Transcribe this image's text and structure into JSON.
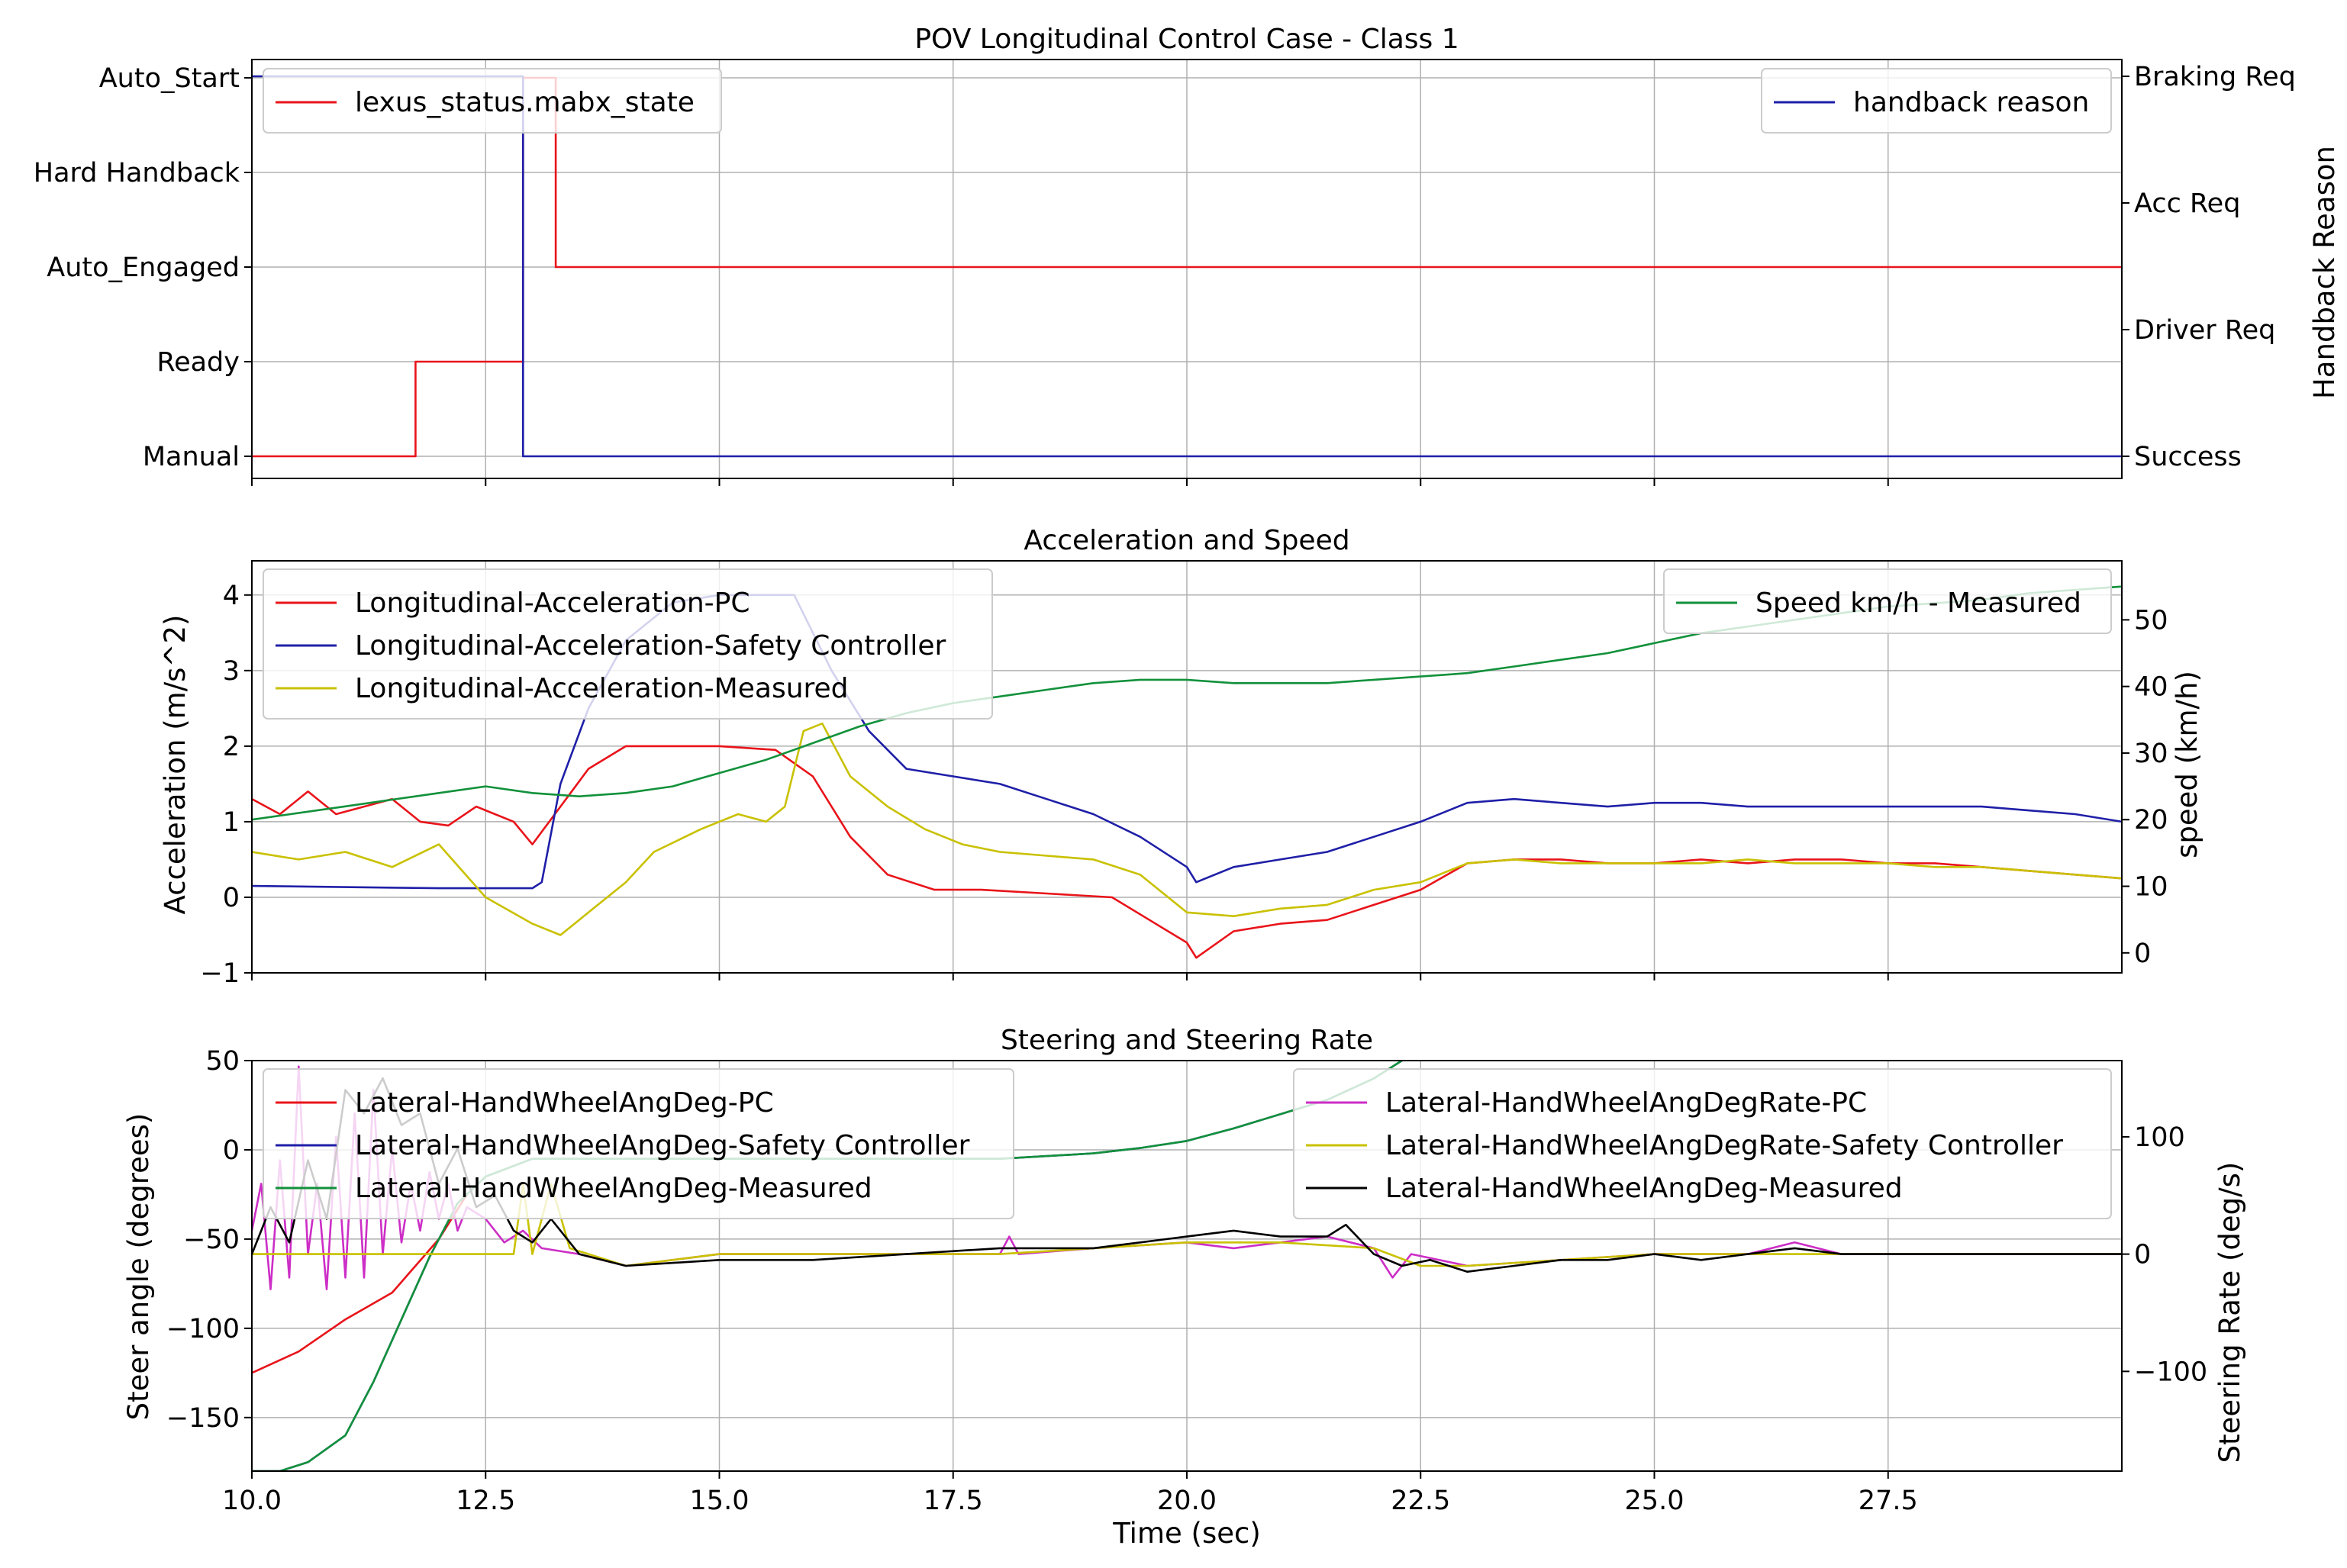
{
  "figure": {
    "xlabel": "Time (sec)",
    "xlim": [
      10.0,
      30.0
    ],
    "xticks": [
      "10.0",
      "12.5",
      "15.0",
      "17.5",
      "20.0",
      "22.5",
      "25.0",
      "27.5"
    ],
    "grid": true
  },
  "chart_data": [
    {
      "type": "line",
      "title": "POV Longitudinal Control Case - Class 1",
      "xlabel": "",
      "ylabel_left": "",
      "ylabel_right": "Handback Reason",
      "y_left_categories": [
        "Manual",
        "Ready",
        "Auto_Engaged",
        "Hard Handback",
        "Auto_Start"
      ],
      "y_right_categories": [
        "Success",
        "Driver Req",
        "Acc Req",
        "Braking Req"
      ],
      "legend_left_position": "top-left",
      "legend_right_position": "top-right",
      "series": [
        {
          "name": "lexus_status.mabx_state",
          "axis": "left",
          "color": "#e8141a",
          "step": true,
          "x": [
            10.0,
            11.75,
            11.75,
            12.9,
            12.9,
            13.25,
            13.25,
            30.0
          ],
          "y": [
            0,
            0,
            1,
            1,
            4,
            4,
            2,
            2
          ]
        },
        {
          "name": "handback reason",
          "axis": "right",
          "color": "#1f1fa8",
          "step": true,
          "x": [
            10.0,
            12.9,
            12.9,
            30.0
          ],
          "y": [
            3,
            3,
            0,
            0
          ]
        }
      ]
    },
    {
      "type": "line",
      "title": "Acceleration and Speed",
      "ylabel_left": "Acceleration (m/s^2)",
      "ylabel_right": "speed (km/h)",
      "ylim_left": [
        -1,
        4.2
      ],
      "ylim_right": [
        -3,
        56
      ],
      "yticks_left": [
        "−1",
        "0",
        "1",
        "2",
        "3",
        "4"
      ],
      "yticks_right": [
        "0",
        "10",
        "20",
        "30",
        "40",
        "50"
      ],
      "legend_left_position": "top-left",
      "legend_right_position": "top-right",
      "series": [
        {
          "name": "Longitudinal-Acceleration-PC",
          "axis": "left",
          "color": "#e8141a",
          "x": [
            10.0,
            10.3,
            10.6,
            10.9,
            11.2,
            11.5,
            11.8,
            12.1,
            12.4,
            12.8,
            13.0,
            13.3,
            13.6,
            14.0,
            14.5,
            15.0,
            15.6,
            16.0,
            16.4,
            16.8,
            17.3,
            17.8,
            18.5,
            19.2,
            19.6,
            20.0,
            20.1,
            20.5,
            21.0,
            21.5,
            22.0,
            22.5,
            23.0,
            23.5,
            24.0,
            24.5,
            25.0,
            25.5,
            26.0,
            26.5,
            27.0,
            27.5,
            28.0,
            28.5,
            29.0,
            29.5,
            30.0
          ],
          "y": [
            1.3,
            1.1,
            1.4,
            1.1,
            1.2,
            1.3,
            1.0,
            0.95,
            1.2,
            1.0,
            0.7,
            1.2,
            1.7,
            2.0,
            2.0,
            2.0,
            1.95,
            1.6,
            0.8,
            0.3,
            0.1,
            0.1,
            0.05,
            0.0,
            -0.3,
            -0.6,
            -0.8,
            -0.45,
            -0.35,
            -0.3,
            -0.1,
            0.1,
            0.45,
            0.5,
            0.5,
            0.45,
            0.45,
            0.5,
            0.45,
            0.5,
            0.5,
            0.45,
            0.45,
            0.4,
            0.35,
            0.3,
            0.25
          ]
        },
        {
          "name": "Longitudinal-Acceleration-Safety Controller",
          "axis": "left",
          "color": "#1f1fa8",
          "x": [
            10.0,
            12.0,
            13.0,
            13.1,
            13.3,
            13.6,
            14.0,
            14.5,
            15.0,
            15.5,
            15.8,
            16.2,
            16.6,
            17.0,
            17.5,
            18.0,
            18.5,
            19.0,
            19.5,
            20.0,
            20.1,
            20.5,
            21.0,
            21.5,
            22.0,
            22.5,
            23.0,
            23.5,
            24.0,
            24.5,
            25.0,
            25.5,
            26.0,
            26.5,
            27.0,
            27.5,
            28.0,
            28.5,
            29.0,
            29.5,
            30.0
          ],
          "y": [
            0.15,
            0.12,
            0.12,
            0.2,
            1.5,
            2.5,
            3.4,
            3.9,
            4.0,
            4.0,
            4.0,
            3.0,
            2.2,
            1.7,
            1.6,
            1.5,
            1.3,
            1.1,
            0.8,
            0.4,
            0.2,
            0.4,
            0.5,
            0.6,
            0.8,
            1.0,
            1.25,
            1.3,
            1.25,
            1.2,
            1.25,
            1.25,
            1.2,
            1.2,
            1.2,
            1.2,
            1.2,
            1.2,
            1.15,
            1.1,
            1.0
          ]
        },
        {
          "name": "Longitudinal-Acceleration-Measured",
          "axis": "left",
          "color": "#c9c100",
          "x": [
            10.0,
            10.5,
            11.0,
            11.5,
            12.0,
            12.5,
            13.0,
            13.3,
            13.6,
            14.0,
            14.3,
            14.8,
            15.2,
            15.5,
            15.7,
            15.9,
            16.1,
            16.4,
            16.8,
            17.2,
            17.6,
            18.0,
            18.5,
            19.0,
            19.5,
            20.0,
            20.5,
            21.0,
            21.5,
            22.0,
            22.5,
            23.0,
            23.5,
            24.0,
            24.5,
            25.0,
            25.5,
            26.0,
            26.5,
            27.0,
            27.5,
            28.0,
            28.5,
            29.0,
            29.5,
            30.0
          ],
          "y": [
            0.6,
            0.5,
            0.6,
            0.4,
            0.7,
            0.0,
            -0.35,
            -0.5,
            -0.2,
            0.2,
            0.6,
            0.9,
            1.1,
            1.0,
            1.2,
            2.2,
            2.3,
            1.6,
            1.2,
            0.9,
            0.7,
            0.6,
            0.55,
            0.5,
            0.3,
            -0.2,
            -0.25,
            -0.15,
            -0.1,
            0.1,
            0.2,
            0.45,
            0.5,
            0.45,
            0.45,
            0.45,
            0.45,
            0.5,
            0.45,
            0.45,
            0.45,
            0.4,
            0.4,
            0.35,
            0.3,
            0.25
          ]
        },
        {
          "name": "Speed km/h - Measured",
          "axis": "right",
          "color": "#12913b",
          "x": [
            10.0,
            11.0,
            12.0,
            12.5,
            13.0,
            13.5,
            14.0,
            14.5,
            15.0,
            15.5,
            16.0,
            16.5,
            17.0,
            17.5,
            18.0,
            18.5,
            19.0,
            19.5,
            20.0,
            20.5,
            21.0,
            21.5,
            22.0,
            22.5,
            23.0,
            23.5,
            24.0,
            24.5,
            25.0,
            25.5,
            26.0,
            26.5,
            27.0,
            27.5,
            28.0,
            28.5,
            29.0,
            29.5,
            30.0
          ],
          "y": [
            20,
            22,
            24,
            25,
            24,
            23.5,
            24,
            25,
            27,
            29,
            31.5,
            34,
            36,
            37.5,
            38.5,
            39.5,
            40.5,
            41,
            41,
            40.5,
            40.5,
            40.5,
            41,
            41.5,
            42,
            43,
            44,
            45,
            46.5,
            48,
            49,
            50,
            51,
            52,
            52.5,
            53,
            54,
            54.5,
            55
          ]
        }
      ]
    },
    {
      "type": "line",
      "title": "Steering and Steering Rate",
      "ylabel_left": "Steer angle (degrees)",
      "ylabel_right": "Steering Rate (deg/s)",
      "ylim_left": [
        -180,
        50
      ],
      "ylim_right": [
        -185,
        165
      ],
      "yticks_left": [
        "50",
        "0",
        "−50",
        "−100",
        "−150"
      ],
      "yticks_right": [
        "100",
        "0",
        "−100"
      ],
      "legend_left_position": "top-left",
      "legend_right_position": "top-right",
      "series": [
        {
          "name": "Lateral-HandWheelAngDeg-PC",
          "axis": "left",
          "color": "#e8141a",
          "x": [
            10.0,
            10.5,
            11.0,
            11.5,
            12.0,
            12.3
          ],
          "y": [
            -125,
            -113,
            -95,
            -80,
            -50,
            -25
          ]
        },
        {
          "name": "Lateral-HandWheelAngDeg-Safety Controller",
          "axis": "left",
          "color": "#1f1fa8",
          "x": [
            10.0,
            10.3,
            10.6,
            11.0,
            11.3,
            11.6,
            11.9,
            12.2,
            12.5,
            13.0,
            14.0,
            15.0,
            16.0,
            17.0,
            18.0,
            19.0,
            19.5,
            20.0,
            20.5,
            21.0,
            21.5,
            22.0,
            22.3
          ],
          "y": [
            -180,
            -180,
            -175,
            -160,
            -130,
            -95,
            -60,
            -30,
            -15,
            -5,
            -5,
            -5,
            -5,
            -5,
            -5,
            -2,
            1,
            5,
            12,
            20,
            28,
            40,
            50
          ]
        },
        {
          "name": "Lateral-HandWheelAngDeg-Measured",
          "axis": "left",
          "color": "#12913b",
          "x": [
            10.0,
            10.3,
            10.6,
            11.0,
            11.3,
            11.6,
            11.9,
            12.2,
            12.5,
            13.0,
            14.0,
            15.0,
            16.0,
            17.0,
            18.0,
            19.0,
            19.5,
            20.0,
            20.5,
            21.0,
            21.5,
            22.0,
            22.3
          ],
          "y": [
            -180,
            -180,
            -175,
            -160,
            -130,
            -95,
            -60,
            -30,
            -15,
            -5,
            -5,
            -5,
            -5,
            -5,
            -5,
            -2,
            1,
            5,
            12,
            20,
            28,
            40,
            50
          ]
        },
        {
          "name": "Lateral-HandWheelAngDegRate-PC",
          "axis": "right",
          "color": "#cc2ec6",
          "x": [
            10.0,
            10.1,
            10.2,
            10.3,
            10.4,
            10.5,
            10.6,
            10.7,
            10.8,
            10.9,
            11.0,
            11.1,
            11.2,
            11.3,
            11.4,
            11.5,
            11.6,
            11.7,
            11.8,
            11.9,
            12.0,
            12.1,
            12.2,
            12.3,
            12.5,
            12.7,
            12.9,
            13.1,
            13.5,
            14.0,
            15.0,
            16.0,
            17.0,
            18.0,
            18.1,
            18.2,
            19.0,
            20.0,
            20.5,
            21.0,
            21.5,
            22.0,
            22.2,
            22.4,
            23.0,
            24.0,
            25.0,
            26.0,
            26.5,
            27.0,
            28.0,
            29.0,
            30.0
          ],
          "y": [
            20,
            60,
            -30,
            80,
            -20,
            160,
            0,
            60,
            -30,
            100,
            -20,
            120,
            -20,
            140,
            0,
            90,
            10,
            60,
            20,
            70,
            30,
            60,
            20,
            40,
            30,
            10,
            20,
            5,
            0,
            -10,
            0,
            0,
            0,
            0,
            15,
            0,
            5,
            10,
            5,
            10,
            15,
            5,
            -20,
            0,
            -10,
            -5,
            0,
            0,
            10,
            0,
            0,
            0,
            0
          ]
        },
        {
          "name": "Lateral-HandWheelAngDegRate-Safety Controller",
          "axis": "right",
          "color": "#c9c100",
          "x": [
            10.0,
            11.0,
            12.0,
            12.8,
            12.9,
            13.0,
            13.2,
            13.4,
            14.0,
            15.0,
            16.0,
            17.0,
            18.0,
            19.0,
            20.0,
            21.0,
            22.0,
            22.5,
            23.0,
            24.0,
            25.0,
            26.0,
            27.0,
            28.0,
            29.0,
            30.0
          ],
          "y": [
            0,
            0,
            0,
            0,
            60,
            0,
            60,
            5,
            -10,
            0,
            0,
            0,
            0,
            5,
            10,
            10,
            5,
            -10,
            -10,
            -5,
            0,
            0,
            0,
            0,
            0,
            0
          ]
        },
        {
          "name": "Lateral-HandWheelAngDeg-Measured",
          "axis": "right",
          "color": "#000000",
          "x": [
            10.0,
            10.2,
            10.4,
            10.6,
            10.8,
            11.0,
            11.2,
            11.4,
            11.6,
            11.8,
            12.0,
            12.2,
            12.4,
            12.6,
            12.8,
            13.0,
            13.2,
            13.5,
            14.0,
            15.0,
            16.0,
            17.0,
            18.0,
            19.0,
            19.5,
            20.0,
            20.5,
            21.0,
            21.5,
            21.7,
            22.0,
            22.3,
            22.6,
            23.0,
            23.5,
            24.0,
            24.5,
            25.0,
            25.5,
            26.0,
            26.5,
            27.0,
            27.5,
            28.0,
            28.5,
            29.0,
            29.5,
            30.0
          ],
          "y": [
            0,
            40,
            10,
            80,
            30,
            140,
            120,
            150,
            110,
            120,
            60,
            90,
            40,
            50,
            20,
            10,
            30,
            0,
            -10,
            -5,
            -5,
            0,
            5,
            5,
            10,
            15,
            20,
            15,
            15,
            25,
            0,
            -10,
            -5,
            -15,
            -10,
            -5,
            -5,
            0,
            -5,
            0,
            5,
            0,
            0,
            0,
            0,
            0,
            0,
            0
          ]
        }
      ]
    }
  ]
}
